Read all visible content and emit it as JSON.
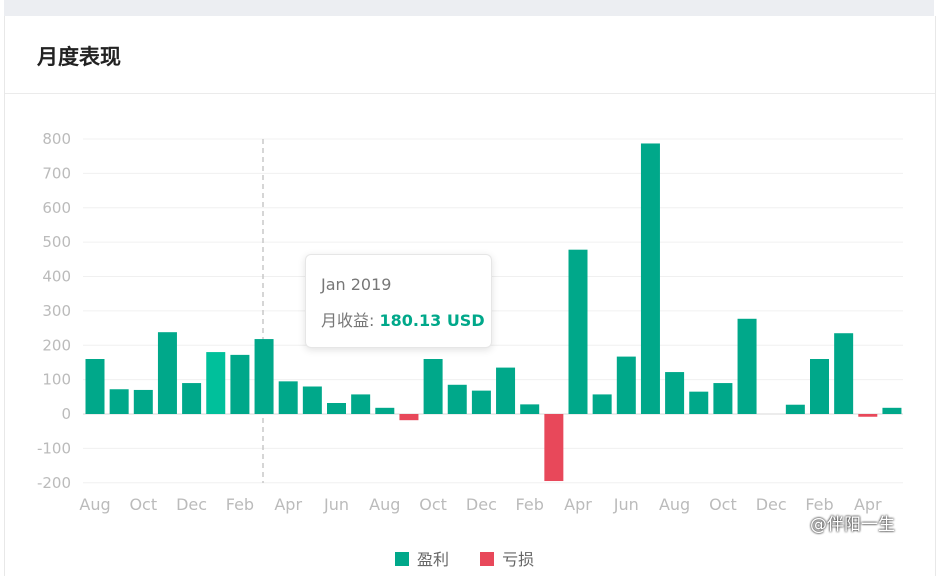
{
  "card": {
    "title": "月度表现"
  },
  "tooltip": {
    "title": "Jan 2019",
    "label": "月收益:",
    "value": "180.13 USD"
  },
  "legend": {
    "items": [
      {
        "label": "盈利",
        "color": "#00a88a"
      },
      {
        "label": "亏损",
        "color": "#e8485a"
      }
    ]
  },
  "watermark": {
    "text": "@伴阳一生"
  },
  "colors": {
    "profit": "#00a88a",
    "loss": "#e8485a",
    "highlight": "#00c09b",
    "grid": "#f0f0f0",
    "tick": "#bbbbbb"
  },
  "chart_data": {
    "type": "bar",
    "title": "",
    "xlabel": "",
    "ylabel": "",
    "ylim": [
      -200,
      800
    ],
    "yticks": [
      800,
      700,
      600,
      500,
      400,
      300,
      200,
      100,
      0,
      -100,
      -200
    ],
    "grid": true,
    "legend_position": "bottom",
    "xtick_labels": [
      {
        "index": 0,
        "label": "Aug"
      },
      {
        "index": 2,
        "label": "Oct"
      },
      {
        "index": 4,
        "label": "Dec"
      },
      {
        "index": 6,
        "label": "Feb"
      },
      {
        "index": 8,
        "label": "Apr"
      },
      {
        "index": 10,
        "label": "Jun"
      },
      {
        "index": 12,
        "label": "Aug"
      },
      {
        "index": 14,
        "label": "Oct"
      },
      {
        "index": 16,
        "label": "Dec"
      },
      {
        "index": 18,
        "label": "Feb"
      },
      {
        "index": 20,
        "label": "Apr"
      },
      {
        "index": 22,
        "label": "Jun"
      },
      {
        "index": 24,
        "label": "Aug"
      },
      {
        "index": 26,
        "label": "Oct"
      },
      {
        "index": 28,
        "label": "Dec"
      },
      {
        "index": 30,
        "label": "Feb"
      },
      {
        "index": 32,
        "label": "Apr"
      }
    ],
    "highlight_index": 5,
    "values": [
      160,
      72,
      70,
      238,
      90,
      180.13,
      172,
      218,
      95,
      80,
      32,
      57,
      18,
      -18,
      160,
      85,
      68,
      135,
      28,
      -195,
      478,
      57,
      167,
      787,
      122,
      65,
      90,
      277,
      0,
      27,
      160,
      235,
      -8,
      18
    ]
  }
}
